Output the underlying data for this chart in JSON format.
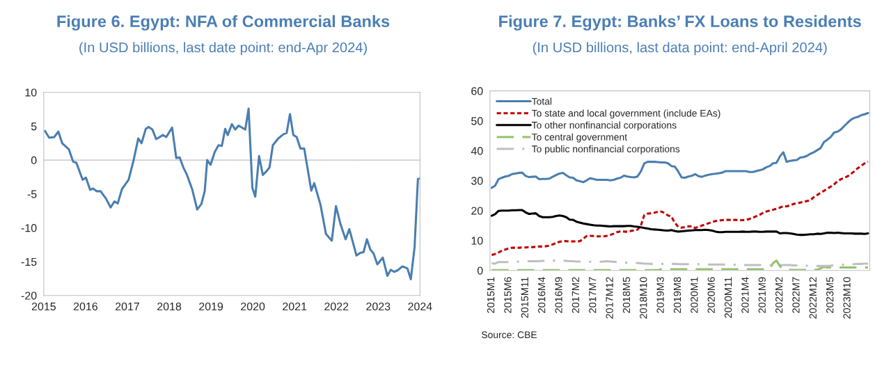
{
  "chart_data": [
    {
      "type": "line",
      "title": "Figure 6. Egypt: NFA of Commercial Banks",
      "subtitle": "(In USD billions, last date point: end-Apr 2024)",
      "x": [
        2015.03,
        2015.13,
        2015.25,
        2015.35,
        2015.44,
        2015.6,
        2015.7,
        2015.78,
        2015.93,
        2016.01,
        2016.11,
        2016.18,
        2016.27,
        2016.36,
        2016.49,
        2016.6,
        2016.69,
        2016.77,
        2016.87,
        2017.03,
        2017.15,
        2017.26,
        2017.34,
        2017.44,
        2017.51,
        2017.6,
        2017.69,
        2017.85,
        2017.93,
        2018.07,
        2018.17,
        2018.25,
        2018.34,
        2018.42,
        2018.55,
        2018.67,
        2018.77,
        2018.85,
        2018.91,
        2018.99,
        2019.09,
        2019.18,
        2019.26,
        2019.34,
        2019.4,
        2019.5,
        2019.58,
        2019.66,
        2019.82,
        2019.9,
        2019.99,
        2020.06,
        2020.15,
        2020.24,
        2020.32,
        2020.4,
        2020.48,
        2020.61,
        2020.73,
        2020.81,
        2020.89,
        2020.97,
        2021.05,
        2021.14,
        2021.23,
        2021.4,
        2021.47,
        2021.62,
        2021.75,
        2021.89,
        2021.99,
        2022.1,
        2022.22,
        2022.31,
        2022.48,
        2022.57,
        2022.65,
        2022.73,
        2022.81,
        2022.89,
        2022.98,
        2023.11,
        2023.22,
        2023.3,
        2023.38,
        2023.46,
        2023.58,
        2023.7,
        2023.78,
        2023.87,
        2023.95,
        2024.0
      ],
      "series": [
        {
          "color": "#4a7eb0",
          "line_style": "solid",
          "values": [
            4.3,
            3.3,
            3.4,
            4.2,
            2.5,
            1.6,
            -0.2,
            -0.4,
            -2.9,
            -2.6,
            -4.4,
            -4.2,
            -4.6,
            -4.6,
            -5.7,
            -7.0,
            -6.1,
            -6.4,
            -4.3,
            -2.9,
            0.0,
            3.2,
            2.5,
            4.6,
            4.9,
            4.5,
            3.1,
            3.7,
            3.4,
            4.8,
            0.3,
            0.4,
            -1.1,
            -2.1,
            -4.3,
            -7.3,
            -6.5,
            -4.6,
            0.0,
            -0.7,
            1.2,
            2.2,
            2.1,
            4.6,
            3.7,
            5.3,
            4.5,
            5.1,
            4.5,
            7.6,
            -4.1,
            -5.4,
            0.6,
            -2.2,
            -1.7,
            -1.1,
            2.2,
            3.2,
            3.8,
            4.0,
            6.8,
            3.7,
            3.4,
            1.7,
            1.7,
            -4.5,
            -3.4,
            -6.6,
            -10.9,
            -11.9,
            -6.8,
            -9.5,
            -11.7,
            -10.2,
            -14.1,
            -13.7,
            -13.6,
            -11.7,
            -13.2,
            -13.8,
            -15.4,
            -14.4,
            -17.1,
            -16.2,
            -16.5,
            -16.3,
            -15.7,
            -16.0,
            -17.6,
            -12.9,
            -2.8,
            -2.7
          ]
        }
      ],
      "xlim": [
        2015,
        2024
      ],
      "xticks": [
        2015,
        2016,
        2017,
        2018,
        2019,
        2020,
        2021,
        2022,
        2023,
        2024
      ],
      "ylim": [
        -20,
        10
      ],
      "yticks": [
        -20,
        -15,
        -10,
        -5,
        0,
        5,
        10
      ],
      "ref_lines": [
        {
          "axis": "y",
          "value": 0,
          "color": "#bfbfbf",
          "line_style": "solid"
        }
      ],
      "grid": false,
      "legend": false
    },
    {
      "type": "line",
      "title": "Figure 7. Egypt: Banks’ FX Loans to Residents",
      "subtitle": "(In USD billions, last data point: end-April 2024)",
      "categories": [
        "2015M1",
        null,
        null,
        null,
        null,
        "2015M6",
        null,
        null,
        null,
        null,
        "2015M11",
        null,
        null,
        null,
        null,
        "2016M4",
        null,
        null,
        null,
        null,
        "2016M9",
        null,
        null,
        null,
        null,
        "2017M2",
        null,
        null,
        null,
        null,
        "2017M7",
        null,
        null,
        null,
        null,
        "2017M12",
        null,
        null,
        null,
        null,
        "2018M5",
        null,
        null,
        null,
        null,
        "2018M10",
        null,
        null,
        null,
        null,
        "2019M3",
        null,
        null,
        null,
        null,
        "2019M8",
        null,
        null,
        null,
        null,
        "2020M1",
        null,
        null,
        null,
        null,
        "2020M6",
        null,
        null,
        null,
        null,
        "2020M11",
        null,
        null,
        null,
        null,
        "2021M4",
        null,
        null,
        null,
        null,
        "2021M9",
        null,
        null,
        null,
        null,
        "2022M2",
        null,
        null,
        null,
        null,
        "2022M7",
        null,
        null,
        null,
        null,
        "2022M12",
        null,
        null,
        null,
        null,
        "2023M5",
        null,
        null,
        null,
        null,
        "2023M10",
        null,
        null,
        null,
        null,
        null,
        null
      ],
      "series": [
        {
          "name": "Total",
          "color": "#4a7eb0",
          "line_style": "solid",
          "values": [
            27.6,
            28.3,
            30.5,
            31.0,
            31.4,
            31.6,
            32.2,
            32.4,
            32.6,
            32.7,
            31.6,
            31.2,
            31.3,
            31.4,
            30.5,
            30.6,
            30.6,
            30.7,
            31.3,
            31.9,
            32.4,
            32.6,
            31.8,
            31.1,
            31.0,
            30.1,
            29.8,
            29.5,
            30.1,
            30.8,
            30.6,
            30.3,
            30.3,
            30.3,
            30.3,
            30.1,
            30.3,
            30.7,
            31.0,
            31.7,
            31.4,
            31.2,
            31.1,
            31.4,
            33.1,
            35.8,
            36.3,
            36.3,
            36.3,
            36.2,
            36.1,
            36.1,
            35.8,
            34.9,
            34.7,
            33.1,
            31.1,
            31.0,
            31.4,
            31.6,
            32.2,
            31.5,
            31.3,
            31.7,
            32.0,
            32.2,
            32.3,
            32.5,
            32.7,
            33.2,
            33.2,
            33.2,
            33.2,
            33.2,
            33.2,
            33.2,
            32.9,
            32.9,
            33.2,
            33.5,
            33.8,
            34.5,
            34.9,
            35.8,
            36.0,
            38.1,
            39.5,
            36.3,
            36.6,
            36.8,
            36.9,
            37.7,
            37.9,
            38.3,
            39.0,
            39.5,
            40.2,
            40.9,
            42.9,
            43.7,
            44.6,
            46.1,
            46.4,
            47.1,
            48.3,
            49.4,
            50.4,
            51.0,
            51.3,
            51.9,
            52.2,
            52.6
          ]
        },
        {
          "name": "To state and local government (include EAs)",
          "color": "#c00000",
          "line_style": "dotted",
          "values": [
            5.2,
            5.5,
            6.0,
            6.6,
            7.0,
            7.4,
            7.6,
            7.6,
            7.6,
            7.7,
            7.7,
            7.8,
            7.8,
            7.9,
            8.0,
            8.0,
            8.1,
            8.3,
            8.7,
            9.2,
            9.6,
            9.8,
            9.8,
            9.7,
            9.7,
            9.7,
            9.8,
            10.6,
            11.5,
            11.6,
            11.5,
            11.4,
            11.4,
            11.4,
            11.6,
            11.9,
            12.3,
            12.8,
            13.1,
            13.0,
            12.9,
            13.2,
            13.4,
            13.6,
            15.0,
            18.5,
            19.0,
            19.1,
            19.3,
            19.6,
            19.7,
            19.2,
            18.4,
            18.0,
            16.0,
            14.6,
            14.3,
            14.5,
            14.7,
            14.8,
            14.2,
            14.6,
            15.0,
            15.4,
            15.8,
            16.2,
            16.5,
            16.7,
            16.8,
            16.9,
            16.9,
            16.9,
            16.9,
            16.8,
            16.8,
            16.9,
            17.2,
            17.6,
            18.1,
            18.6,
            19.2,
            19.7,
            20.0,
            20.3,
            20.6,
            21.0,
            21.5,
            21.4,
            21.8,
            22.2,
            22.5,
            22.7,
            22.9,
            23.2,
            23.5,
            24.5,
            25.2,
            26.0,
            26.6,
            27.4,
            28.0,
            28.8,
            29.8,
            30.5,
            31.0,
            31.5,
            32.3,
            33.2,
            34.2,
            35.0,
            35.8,
            36.3
          ]
        },
        {
          "name": "To other nonfinancial corporations",
          "color": "#000000",
          "line_style": "solid",
          "values": [
            18.3,
            18.8,
            19.9,
            20.0,
            20.0,
            20.0,
            20.1,
            20.1,
            20.2,
            20.2,
            19.4,
            18.9,
            19.0,
            19.1,
            18.2,
            17.8,
            17.8,
            17.8,
            17.9,
            18.2,
            18.4,
            18.2,
            17.8,
            17.0,
            16.9,
            16.3,
            16.0,
            15.7,
            15.5,
            15.3,
            15.1,
            15.0,
            15.0,
            14.9,
            14.8,
            14.7,
            14.8,
            14.8,
            14.8,
            14.8,
            14.9,
            14.9,
            14.7,
            14.6,
            14.4,
            14.2,
            14.0,
            13.8,
            13.7,
            13.6,
            13.5,
            13.4,
            13.3,
            13.5,
            13.2,
            13.0,
            13.1,
            13.2,
            13.3,
            13.4,
            13.5,
            13.5,
            13.5,
            13.6,
            13.5,
            13.3,
            13.0,
            12.8,
            12.8,
            12.9,
            12.9,
            12.9,
            12.9,
            12.9,
            13.0,
            12.9,
            12.9,
            13.0,
            13.0,
            12.9,
            12.9,
            13.0,
            13.0,
            13.0,
            13.0,
            12.4,
            12.5,
            12.5,
            12.4,
            12.2,
            12.0,
            11.9,
            11.9,
            12.0,
            12.1,
            12.1,
            12.3,
            12.2,
            12.4,
            12.6,
            12.6,
            12.5,
            12.6,
            12.5,
            12.4,
            12.4,
            12.4,
            12.3,
            12.3,
            12.3,
            12.2,
            12.4
          ]
        },
        {
          "name": "To central government",
          "color": "#92c36a",
          "line_style": "dashed",
          "values": [
            0.1,
            0.1,
            0.1,
            0.1,
            0.1,
            0.1,
            0.1,
            0.1,
            0.1,
            0.1,
            0.1,
            0.1,
            0.1,
            0.1,
            0.1,
            0.1,
            0.1,
            0.1,
            0.1,
            0.1,
            0.1,
            0.1,
            0.1,
            0.1,
            0.1,
            0.1,
            0.1,
            0.1,
            0.1,
            0.1,
            0.1,
            0.1,
            0.1,
            0.1,
            0.1,
            0.1,
            0.1,
            0.1,
            0.1,
            0.1,
            0.1,
            0.1,
            0.1,
            0.1,
            0.1,
            0.1,
            0.1,
            0.1,
            0.1,
            0.1,
            0.4,
            0.4,
            0.4,
            0.4,
            0.4,
            0.4,
            0.4,
            0.4,
            0.4,
            0.4,
            0.4,
            0.4,
            0.4,
            0.4,
            0.4,
            0.4,
            0.4,
            0.4,
            0.4,
            0.4,
            0.4,
            0.4,
            0.4,
            0.4,
            0.4,
            0.4,
            0.4,
            0.4,
            0.4,
            0.4,
            0.4,
            0.4,
            0.5,
            2.5,
            3.3,
            1.5,
            0.3,
            0.2,
            0.2,
            0.2,
            0.2,
            0.2,
            0.2,
            0.2,
            0.2,
            0.2,
            0.3,
            0.7,
            1.2,
            1.0,
            1.0,
            1.0,
            1.0,
            1.0,
            1.0,
            1.0,
            1.0,
            1.0,
            1.0,
            1.0,
            1.0,
            1.0
          ]
        },
        {
          "name": "To public nonfinancial corporations",
          "color": "#bfbfbf",
          "line_style": "dashdot",
          "values": [
            2.4,
            2.3,
            2.8,
            2.8,
            2.8,
            2.8,
            2.8,
            2.9,
            3.0,
            3.0,
            3.0,
            3.1,
            3.1,
            3.1,
            3.1,
            3.2,
            3.2,
            3.3,
            3.3,
            3.3,
            3.3,
            3.3,
            3.2,
            3.1,
            3.1,
            3.0,
            3.0,
            3.0,
            2.9,
            2.9,
            2.9,
            2.9,
            2.9,
            3.0,
            3.1,
            3.0,
            2.9,
            2.8,
            2.8,
            2.7,
            2.6,
            2.6,
            2.5,
            2.5,
            2.4,
            2.3,
            2.3,
            2.2,
            2.2,
            2.2,
            2.2,
            2.2,
            2.2,
            2.2,
            2.2,
            2.1,
            2.1,
            2.1,
            2.1,
            2.2,
            2.2,
            2.1,
            2.1,
            2.0,
            2.0,
            2.0,
            2.0,
            2.0,
            2.0,
            2.0,
            1.9,
            1.9,
            1.9,
            1.8,
            1.8,
            1.8,
            1.8,
            1.8,
            1.8,
            1.8,
            1.8,
            1.8,
            1.8,
            1.8,
            1.8,
            1.8,
            1.8,
            1.8,
            1.8,
            1.7,
            1.7,
            1.6,
            1.6,
            1.6,
            1.5,
            1.5,
            1.5,
            1.5,
            1.5,
            1.5,
            1.6,
            1.7,
            1.8,
            1.9,
            1.9,
            2.0,
            2.0,
            2.1,
            2.2,
            2.2,
            2.3,
            2.3
          ]
        }
      ],
      "ylim": [
        0,
        60
      ],
      "yticks": [
        0,
        10,
        20,
        30,
        40,
        50,
        60
      ],
      "grid": false,
      "legend": "top left",
      "annotations": [
        "Source: CBE"
      ]
    }
  ]
}
